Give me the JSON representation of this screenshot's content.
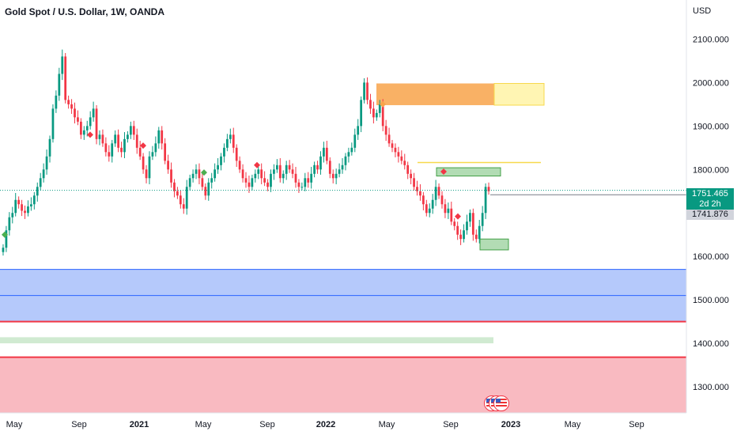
{
  "header": {
    "title": "Gold Spot / U.S. Dollar, 1W, OANDA",
    "currency": "USD"
  },
  "price_labels": {
    "last_price": "1751.465",
    "countdown": "2d 2h",
    "secondary_price": "1741.876"
  },
  "colors": {
    "up": "#089981",
    "down": "#f23645",
    "blue_zone": "#a8bffa",
    "red_zone": "#f8aeb6",
    "orange_zone": "#f8a34a",
    "yellow_zone": "#fff3a6",
    "green_zone": "#a5d6a7"
  },
  "chart_data": {
    "type": "candlestick",
    "title": "Gold Spot / U.S. Dollar, 1W, OANDA",
    "ylabel": "USD",
    "ylim": [
      1240,
      2190
    ],
    "y_ticks": [
      "2100.000",
      "2000.000",
      "1900.000",
      "1800.000",
      "1600.000",
      "1500.000",
      "1400.000",
      "1300.000"
    ],
    "x_ticks": [
      "May",
      "Sep",
      "2021",
      "May",
      "Sep",
      "2022",
      "May",
      "Sep",
      "2023",
      "May",
      "Sep"
    ],
    "x_ticks_bold": [
      "2021",
      "2022",
      "2023"
    ],
    "last_price": 1751.465,
    "secondary_price": 1741.876,
    "zones": [
      {
        "name": "blue-zone",
        "low": 1450,
        "high": 1570,
        "mid": 1510,
        "color": "#a8bffa"
      },
      {
        "name": "green-band",
        "low": 1400,
        "high": 1414,
        "color": "#c8e6c9"
      },
      {
        "name": "red-zone",
        "low": 1240,
        "high": 1368,
        "color": "#f8aeb6"
      },
      {
        "name": "orange-zone",
        "low": 1948,
        "high": 1998,
        "color": "#f8a34a"
      },
      {
        "name": "yellow-zone",
        "low": 1948,
        "high": 1998,
        "color": "#fff3a6"
      },
      {
        "name": "green-box-upper",
        "low": 1785,
        "high": 1804,
        "color": "#a5d6a7"
      },
      {
        "name": "green-box-lower",
        "low": 1615,
        "high": 1640,
        "color": "#a5d6a7"
      }
    ],
    "levels": [
      {
        "name": "yellow-line",
        "value": 1816
      },
      {
        "name": "last-price-dotted",
        "value": 1752
      }
    ],
    "series": [
      {
        "name": "",
        "values": [
          1620,
          1660,
          1690,
          1700,
          1730,
          1720,
          1705,
          1700,
          1715,
          1720,
          1740,
          1760,
          1780,
          1800,
          1830,
          1870,
          1940,
          1970,
          2020,
          2060,
          1960,
          1950,
          1940,
          1920,
          1910,
          1880,
          1890,
          1900,
          1920,
          1940,
          1870,
          1880,
          1860,
          1840,
          1830,
          1860,
          1880,
          1850,
          1840,
          1870,
          1880,
          1900,
          1880,
          1850,
          1830,
          1800,
          1780,
          1830,
          1840,
          1860,
          1890,
          1860,
          1820,
          1800,
          1770,
          1750,
          1740,
          1720,
          1710,
          1760,
          1780,
          1790,
          1800,
          1780,
          1760,
          1740,
          1770,
          1780,
          1800,
          1810,
          1830,
          1850,
          1870,
          1880,
          1850,
          1820,
          1800,
          1780,
          1770,
          1760,
          1780,
          1790,
          1800,
          1780,
          1770,
          1760,
          1790,
          1800,
          1810,
          1780,
          1790,
          1810,
          1800,
          1790,
          1770,
          1760,
          1760,
          1780,
          1770,
          1790,
          1810,
          1800,
          1830,
          1850,
          1820,
          1790,
          1780,
          1790,
          1800,
          1810,
          1830,
          1840,
          1850,
          1880,
          1900,
          1960,
          2000,
          1960,
          1940,
          1920,
          1930,
          1950,
          1900,
          1880,
          1860,
          1850,
          1840,
          1830,
          1820,
          1810,
          1790,
          1780,
          1760,
          1750,
          1740,
          1720,
          1700,
          1710,
          1730,
          1760,
          1740,
          1720,
          1700,
          1710,
          1680,
          1670,
          1650,
          1640,
          1660,
          1680,
          1700,
          1650,
          1640,
          1670,
          1700,
          1760,
          1750
        ]
      }
    ]
  }
}
